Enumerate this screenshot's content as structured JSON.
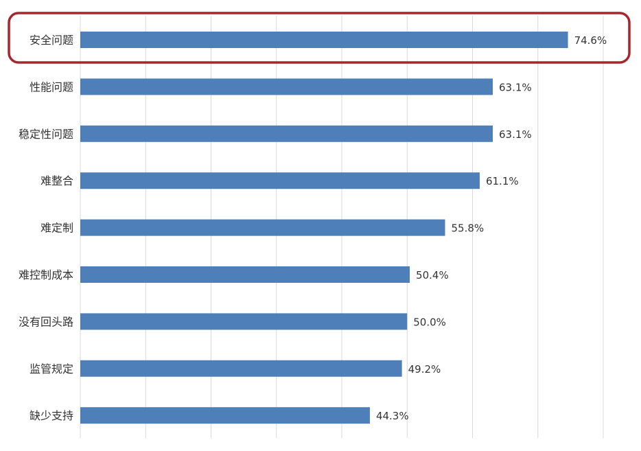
{
  "chart_data": {
    "type": "bar",
    "orientation": "horizontal",
    "categories": [
      "安全问题",
      "性能问题",
      "稳定性问题",
      "难整合",
      "难定制",
      "难控制成本",
      "没有回头路",
      "监管规定",
      "缺少支持"
    ],
    "values": [
      74.6,
      63.1,
      63.1,
      61.1,
      55.8,
      50.4,
      50.0,
      49.2,
      44.3
    ],
    "value_labels": [
      "74.6%",
      "63.1%",
      "63.1%",
      "61.1%",
      "55.8%",
      "50.4%",
      "50.0%",
      "49.2%",
      "44.3%"
    ],
    "xlim": [
      0,
      80
    ],
    "grid": "vertical",
    "highlighted_category": "安全问题",
    "bar_color": "#4e7fb9",
    "highlight_color": "#a8252c"
  }
}
